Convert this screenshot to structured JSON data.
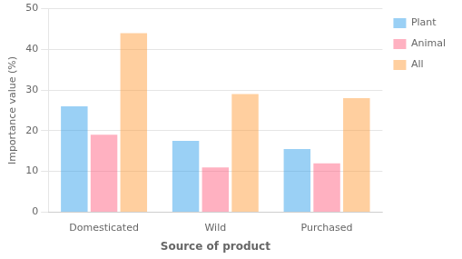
{
  "chart_data": {
    "type": "bar",
    "categories": [
      "Domesticated",
      "Wild",
      "Purchased"
    ],
    "series": [
      {
        "name": "Plant",
        "values": [
          26,
          17.5,
          15.5
        ]
      },
      {
        "name": "Animal",
        "values": [
          19,
          11,
          12
        ]
      },
      {
        "name": "All",
        "values": [
          44,
          29,
          28
        ]
      }
    ],
    "xlabel": "Source of product",
    "ylabel": "Importance value (%)",
    "ylim": [
      0,
      50
    ],
    "yticks": [
      0,
      10,
      20,
      30,
      40,
      50
    ],
    "grid": true,
    "legend": "right"
  }
}
